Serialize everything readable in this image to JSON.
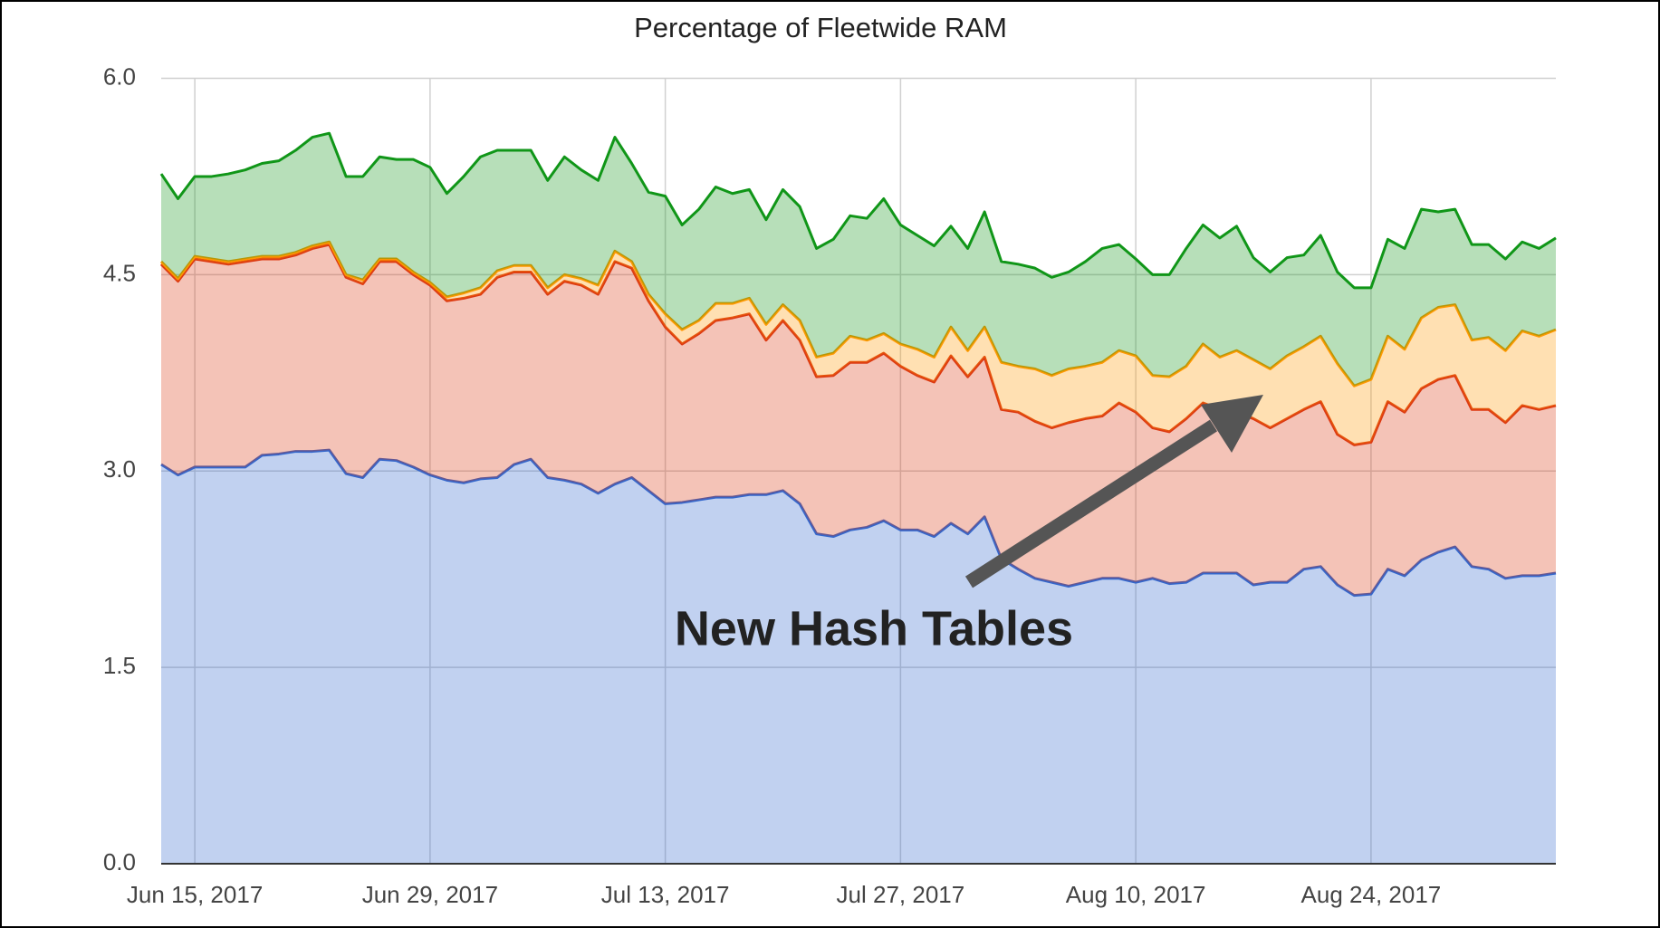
{
  "chart_data": {
    "type": "stacked-area",
    "title": "Percentage of Fleetwide RAM",
    "annotation": "New Hash Tables",
    "x": [
      "2017-06-13",
      "2017-06-14",
      "2017-06-15",
      "2017-06-16",
      "2017-06-17",
      "2017-06-18",
      "2017-06-19",
      "2017-06-20",
      "2017-06-21",
      "2017-06-22",
      "2017-06-23",
      "2017-06-24",
      "2017-06-25",
      "2017-06-26",
      "2017-06-27",
      "2017-06-28",
      "2017-06-29",
      "2017-06-30",
      "2017-07-01",
      "2017-07-02",
      "2017-07-03",
      "2017-07-04",
      "2017-07-05",
      "2017-07-06",
      "2017-07-07",
      "2017-07-08",
      "2017-07-09",
      "2017-07-10",
      "2017-07-11",
      "2017-07-12",
      "2017-07-13",
      "2017-07-14",
      "2017-07-15",
      "2017-07-16",
      "2017-07-17",
      "2017-07-18",
      "2017-07-19",
      "2017-07-20",
      "2017-07-21",
      "2017-07-22",
      "2017-07-23",
      "2017-07-24",
      "2017-07-25",
      "2017-07-26",
      "2017-07-27",
      "2017-07-28",
      "2017-07-29",
      "2017-07-30",
      "2017-07-31",
      "2017-08-01",
      "2017-08-02",
      "2017-08-03",
      "2017-08-04",
      "2017-08-05",
      "2017-08-06",
      "2017-08-07",
      "2017-08-08",
      "2017-08-09",
      "2017-08-10",
      "2017-08-11",
      "2017-08-12",
      "2017-08-13",
      "2017-08-14",
      "2017-08-15",
      "2017-08-16",
      "2017-08-17",
      "2017-08-18",
      "2017-08-19",
      "2017-08-20",
      "2017-08-21",
      "2017-08-22",
      "2017-08-23",
      "2017-08-24",
      "2017-08-25",
      "2017-08-26",
      "2017-08-27",
      "2017-08-28",
      "2017-08-29",
      "2017-08-30",
      "2017-08-31",
      "2017-09-01",
      "2017-09-02",
      "2017-09-03",
      "2017-09-04"
    ],
    "series": [
      {
        "color": "#3366cc",
        "values": [
          3.05,
          2.97,
          3.03,
          3.03,
          3.03,
          3.03,
          3.12,
          3.13,
          3.15,
          3.15,
          3.16,
          2.98,
          2.95,
          3.09,
          3.08,
          3.03,
          2.97,
          2.93,
          2.91,
          2.94,
          2.95,
          3.05,
          3.09,
          2.95,
          2.93,
          2.9,
          2.83,
          2.9,
          2.95,
          2.85,
          2.75,
          2.76,
          2.78,
          2.8,
          2.8,
          2.82,
          2.82,
          2.85,
          2.75,
          2.52,
          2.5,
          2.55,
          2.57,
          2.62,
          2.55,
          2.55,
          2.5,
          2.6,
          2.52,
          2.65,
          2.33,
          2.25,
          2.18,
          2.15,
          2.12,
          2.15,
          2.18,
          2.18,
          2.15,
          2.18,
          2.14,
          2.15,
          2.22,
          2.22,
          2.22,
          2.13,
          2.15,
          2.15,
          2.25,
          2.27,
          2.13,
          2.05,
          2.06,
          2.25,
          2.2,
          2.32,
          2.38,
          2.42,
          2.27,
          2.25,
          2.18,
          2.2,
          2.2,
          2.22
        ]
      },
      {
        "color": "#dc3912",
        "values": [
          1.53,
          1.48,
          1.59,
          1.57,
          1.55,
          1.57,
          1.5,
          1.49,
          1.5,
          1.55,
          1.57,
          1.5,
          1.48,
          1.51,
          1.52,
          1.47,
          1.45,
          1.37,
          1.41,
          1.41,
          1.53,
          1.47,
          1.43,
          1.4,
          1.52,
          1.52,
          1.52,
          1.7,
          1.6,
          1.45,
          1.35,
          1.21,
          1.27,
          1.35,
          1.37,
          1.38,
          1.18,
          1.3,
          1.25,
          1.2,
          1.23,
          1.28,
          1.26,
          1.28,
          1.25,
          1.18,
          1.18,
          1.28,
          1.2,
          1.22,
          1.14,
          1.2,
          1.2,
          1.18,
          1.25,
          1.25,
          1.24,
          1.34,
          1.3,
          1.15,
          1.16,
          1.25,
          1.3,
          1.25,
          1.23,
          1.27,
          1.18,
          1.25,
          1.22,
          1.26,
          1.15,
          1.15,
          1.16,
          1.28,
          1.25,
          1.31,
          1.32,
          1.31,
          1.2,
          1.22,
          1.19,
          1.3,
          1.27,
          1.28
        ]
      },
      {
        "color": "#ff9900",
        "values": [
          0.02,
          0.02,
          0.02,
          0.02,
          0.02,
          0.02,
          0.02,
          0.02,
          0.02,
          0.02,
          0.02,
          0.02,
          0.03,
          0.02,
          0.02,
          0.02,
          0.02,
          0.03,
          0.04,
          0.05,
          0.05,
          0.05,
          0.05,
          0.05,
          0.05,
          0.05,
          0.07,
          0.08,
          0.05,
          0.05,
          0.1,
          0.11,
          0.1,
          0.13,
          0.11,
          0.12,
          0.12,
          0.12,
          0.15,
          0.15,
          0.17,
          0.2,
          0.17,
          0.15,
          0.17,
          0.2,
          0.19,
          0.22,
          0.2,
          0.23,
          0.36,
          0.35,
          0.4,
          0.4,
          0.41,
          0.4,
          0.41,
          0.4,
          0.43,
          0.4,
          0.42,
          0.4,
          0.45,
          0.4,
          0.47,
          0.45,
          0.45,
          0.48,
          0.48,
          0.5,
          0.54,
          0.45,
          0.48,
          0.5,
          0.48,
          0.54,
          0.55,
          0.54,
          0.53,
          0.55,
          0.55,
          0.57,
          0.56,
          0.58
        ]
      },
      {
        "color": "#109618",
        "values": [
          0.67,
          0.61,
          0.61,
          0.63,
          0.67,
          0.68,
          0.71,
          0.73,
          0.78,
          0.83,
          0.83,
          0.75,
          0.79,
          0.78,
          0.76,
          0.86,
          0.88,
          0.79,
          0.89,
          1.0,
          0.92,
          0.88,
          0.88,
          0.82,
          0.9,
          0.83,
          0.8,
          0.87,
          0.75,
          0.78,
          0.9,
          0.8,
          0.85,
          0.89,
          0.84,
          0.83,
          0.8,
          0.88,
          0.87,
          0.83,
          0.87,
          0.92,
          0.93,
          1.03,
          0.91,
          0.87,
          0.85,
          0.77,
          0.78,
          0.88,
          0.77,
          0.78,
          0.77,
          0.75,
          0.74,
          0.8,
          0.87,
          0.81,
          0.74,
          0.77,
          0.78,
          0.9,
          0.91,
          0.91,
          0.95,
          0.78,
          0.74,
          0.75,
          0.7,
          0.77,
          0.7,
          0.75,
          0.7,
          0.74,
          0.77,
          0.83,
          0.73,
          0.73,
          0.73,
          0.71,
          0.7,
          0.68,
          0.67,
          0.7
        ]
      }
    ],
    "xlim": [
      "2017-06-13",
      "2017-09-04"
    ],
    "xticks": [
      {
        "value": "2017-06-15",
        "label": "Jun 15, 2017"
      },
      {
        "value": "2017-06-29",
        "label": "Jun 29, 2017"
      },
      {
        "value": "2017-07-13",
        "label": "Jul 13, 2017"
      },
      {
        "value": "2017-07-27",
        "label": "Jul 27, 2017"
      },
      {
        "value": "2017-08-10",
        "label": "Aug 10, 2017"
      },
      {
        "value": "2017-08-24",
        "label": "Aug 24, 2017"
      }
    ],
    "ylim": [
      0,
      6
    ],
    "yticks": [
      {
        "value": 0,
        "label": "0.0"
      },
      1.5,
      {
        "value": 3,
        "label": "3.0"
      },
      4.5,
      {
        "value": 6,
        "label": "6.0"
      }
    ],
    "grid": true
  }
}
